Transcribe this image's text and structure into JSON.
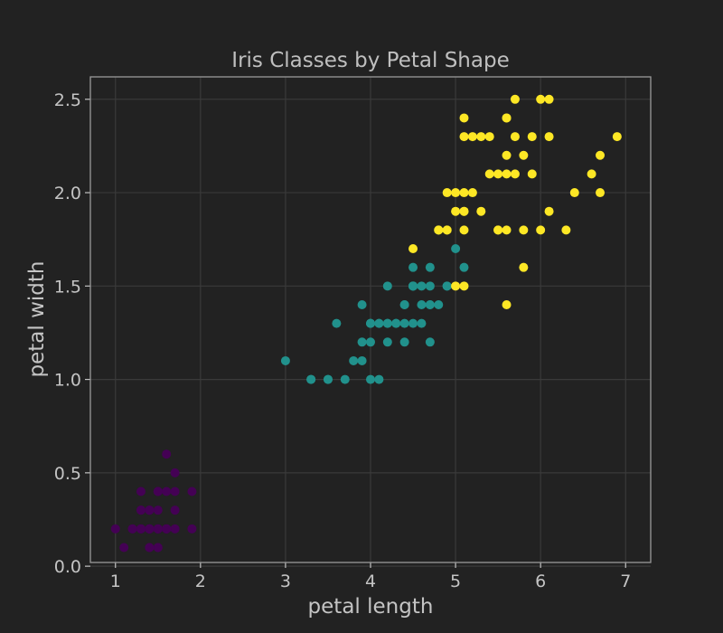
{
  "chart_data": {
    "type": "scatter",
    "title": "Iris Classes by Petal Shape",
    "xlabel": "petal length",
    "ylabel": "petal width",
    "xlim": [
      0.705,
      7.295
    ],
    "ylim": [
      0.02,
      2.62
    ],
    "xticks": [
      1,
      2,
      3,
      4,
      5,
      6,
      7
    ],
    "yticks": [
      0.0,
      0.5,
      1.0,
      1.5,
      2.0,
      2.5
    ],
    "xtick_labels": [
      "1",
      "2",
      "3",
      "4",
      "5",
      "6",
      "7"
    ],
    "ytick_labels": [
      "0.0",
      "0.5",
      "1.0",
      "1.5",
      "2.0",
      "2.5"
    ],
    "grid": true,
    "background": "#222222",
    "series": [
      {
        "color": "#440154",
        "points": [
          [
            1.4,
            0.2
          ],
          [
            1.4,
            0.2
          ],
          [
            1.3,
            0.2
          ],
          [
            1.5,
            0.2
          ],
          [
            1.4,
            0.2
          ],
          [
            1.7,
            0.4
          ],
          [
            1.4,
            0.3
          ],
          [
            1.5,
            0.2
          ],
          [
            1.4,
            0.2
          ],
          [
            1.5,
            0.1
          ],
          [
            1.5,
            0.2
          ],
          [
            1.6,
            0.2
          ],
          [
            1.4,
            0.1
          ],
          [
            1.1,
            0.1
          ],
          [
            1.2,
            0.2
          ],
          [
            1.5,
            0.4
          ],
          [
            1.3,
            0.4
          ],
          [
            1.4,
            0.3
          ],
          [
            1.7,
            0.3
          ],
          [
            1.5,
            0.3
          ],
          [
            1.7,
            0.2
          ],
          [
            1.5,
            0.4
          ],
          [
            1.0,
            0.2
          ],
          [
            1.7,
            0.5
          ],
          [
            1.9,
            0.2
          ],
          [
            1.6,
            0.2
          ],
          [
            1.6,
            0.4
          ],
          [
            1.5,
            0.2
          ],
          [
            1.4,
            0.2
          ],
          [
            1.6,
            0.2
          ],
          [
            1.6,
            0.2
          ],
          [
            1.5,
            0.4
          ],
          [
            1.5,
            0.1
          ],
          [
            1.4,
            0.2
          ],
          [
            1.5,
            0.2
          ],
          [
            1.2,
            0.2
          ],
          [
            1.3,
            0.2
          ],
          [
            1.4,
            0.1
          ],
          [
            1.3,
            0.2
          ],
          [
            1.5,
            0.2
          ],
          [
            1.3,
            0.3
          ],
          [
            1.3,
            0.3
          ],
          [
            1.3,
            0.2
          ],
          [
            1.6,
            0.6
          ],
          [
            1.9,
            0.4
          ],
          [
            1.4,
            0.3
          ],
          [
            1.6,
            0.2
          ],
          [
            1.4,
            0.2
          ],
          [
            1.5,
            0.2
          ],
          [
            1.4,
            0.2
          ]
        ]
      },
      {
        "color": "#21918c",
        "points": [
          [
            4.7,
            1.4
          ],
          [
            4.5,
            1.5
          ],
          [
            4.9,
            1.5
          ],
          [
            4.0,
            1.3
          ],
          [
            4.6,
            1.5
          ],
          [
            4.5,
            1.3
          ],
          [
            4.7,
            1.6
          ],
          [
            3.3,
            1.0
          ],
          [
            4.6,
            1.3
          ],
          [
            3.9,
            1.4
          ],
          [
            3.5,
            1.0
          ],
          [
            4.2,
            1.5
          ],
          [
            4.0,
            1.0
          ],
          [
            4.7,
            1.4
          ],
          [
            3.6,
            1.3
          ],
          [
            4.4,
            1.4
          ],
          [
            4.5,
            1.5
          ],
          [
            4.1,
            1.0
          ],
          [
            4.5,
            1.5
          ],
          [
            3.9,
            1.1
          ],
          [
            4.8,
            1.8
          ],
          [
            4.0,
            1.3
          ],
          [
            4.9,
            1.5
          ],
          [
            4.7,
            1.2
          ],
          [
            4.3,
            1.3
          ],
          [
            4.4,
            1.4
          ],
          [
            4.8,
            1.4
          ],
          [
            5.0,
            1.7
          ],
          [
            4.5,
            1.5
          ],
          [
            3.5,
            1.0
          ],
          [
            3.8,
            1.1
          ],
          [
            3.7,
            1.0
          ],
          [
            3.9,
            1.2
          ],
          [
            5.1,
            1.6
          ],
          [
            4.5,
            1.5
          ],
          [
            4.5,
            1.6
          ],
          [
            4.7,
            1.5
          ],
          [
            4.4,
            1.3
          ],
          [
            4.1,
            1.3
          ],
          [
            4.0,
            1.3
          ],
          [
            4.4,
            1.2
          ],
          [
            4.6,
            1.4
          ],
          [
            4.0,
            1.2
          ],
          [
            3.3,
            1.0
          ],
          [
            4.2,
            1.3
          ],
          [
            4.2,
            1.2
          ],
          [
            4.2,
            1.3
          ],
          [
            4.3,
            1.3
          ],
          [
            3.0,
            1.1
          ],
          [
            4.1,
            1.3
          ]
        ]
      },
      {
        "color": "#fde725",
        "points": [
          [
            6.0,
            2.5
          ],
          [
            5.1,
            1.9
          ],
          [
            5.9,
            2.1
          ],
          [
            5.6,
            1.8
          ],
          [
            5.8,
            2.2
          ],
          [
            6.6,
            2.1
          ],
          [
            4.5,
            1.7
          ],
          [
            6.3,
            1.8
          ],
          [
            5.8,
            1.8
          ],
          [
            6.1,
            2.5
          ],
          [
            5.1,
            2.0
          ],
          [
            5.3,
            1.9
          ],
          [
            5.5,
            2.1
          ],
          [
            5.0,
            2.0
          ],
          [
            5.1,
            2.4
          ],
          [
            5.3,
            2.3
          ],
          [
            5.5,
            1.8
          ],
          [
            6.7,
            2.2
          ],
          [
            6.9,
            2.3
          ],
          [
            5.0,
            1.5
          ],
          [
            5.7,
            2.3
          ],
          [
            4.9,
            2.0
          ],
          [
            6.7,
            2.0
          ],
          [
            4.9,
            1.8
          ],
          [
            5.7,
            2.1
          ],
          [
            6.0,
            1.8
          ],
          [
            4.8,
            1.8
          ],
          [
            4.9,
            1.8
          ],
          [
            5.6,
            2.1
          ],
          [
            5.8,
            1.6
          ],
          [
            6.1,
            1.9
          ],
          [
            6.4,
            2.0
          ],
          [
            5.6,
            2.2
          ],
          [
            5.1,
            1.5
          ],
          [
            5.6,
            1.4
          ],
          [
            6.1,
            2.3
          ],
          [
            5.6,
            2.4
          ],
          [
            5.5,
            1.8
          ],
          [
            4.8,
            1.8
          ],
          [
            5.4,
            2.1
          ],
          [
            5.6,
            2.4
          ],
          [
            5.1,
            2.3
          ],
          [
            5.1,
            1.9
          ],
          [
            5.9,
            2.3
          ],
          [
            5.7,
            2.5
          ],
          [
            5.2,
            2.3
          ],
          [
            5.0,
            1.9
          ],
          [
            5.2,
            2.0
          ],
          [
            5.4,
            2.3
          ],
          [
            5.1,
            1.8
          ]
        ]
      }
    ]
  }
}
